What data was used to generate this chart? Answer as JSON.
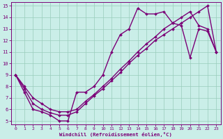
{
  "xlabel": "Windchill (Refroidissement éolien,°C)",
  "line1_x": [
    0,
    1,
    2,
    3,
    4,
    5,
    6,
    7,
    8,
    9,
    10,
    11,
    12,
    13,
    14,
    15,
    16,
    17,
    18,
    19,
    20,
    21,
    22,
    23
  ],
  "line1_y": [
    9.0,
    7.5,
    6.0,
    5.8,
    5.5,
    5.0,
    5.0,
    7.5,
    7.5,
    8.0,
    9.0,
    11.0,
    12.5,
    13.0,
    14.8,
    14.3,
    14.3,
    14.5,
    13.5,
    13.3,
    10.5,
    13.0,
    12.8,
    11.0
  ],
  "line2_x": [
    0,
    1,
    2,
    3,
    4,
    5,
    6,
    7,
    8,
    9,
    10,
    11,
    12,
    13,
    14,
    15,
    16,
    17,
    18,
    19,
    20,
    21,
    22,
    23
  ],
  "line2_y": [
    9.0,
    8.0,
    7.0,
    6.5,
    6.0,
    5.8,
    5.8,
    6.0,
    6.7,
    7.3,
    8.0,
    8.7,
    9.5,
    10.2,
    11.0,
    11.7,
    12.3,
    13.0,
    13.5,
    14.0,
    14.5,
    13.3,
    13.0,
    11.0
  ],
  "line3_x": [
    0,
    1,
    2,
    3,
    4,
    5,
    6,
    7,
    8,
    9,
    10,
    11,
    12,
    13,
    14,
    15,
    16,
    17,
    18,
    19,
    20,
    21,
    22,
    23
  ],
  "line3_y": [
    9.0,
    7.8,
    6.5,
    6.0,
    5.7,
    5.5,
    5.5,
    5.8,
    6.5,
    7.2,
    7.8,
    8.5,
    9.2,
    10.0,
    10.7,
    11.3,
    12.0,
    12.5,
    13.0,
    13.5,
    14.0,
    14.5,
    15.0,
    11.0
  ],
  "color": "#7b0077",
  "bg_color": "#caeee8",
  "grid_color": "#99ccbb",
  "xlim": [
    -0.5,
    23.5
  ],
  "ylim": [
    4.7,
    15.3
  ],
  "xticks": [
    0,
    1,
    2,
    3,
    4,
    5,
    6,
    7,
    8,
    9,
    10,
    11,
    12,
    13,
    14,
    15,
    16,
    17,
    18,
    19,
    20,
    21,
    22,
    23
  ],
  "yticks": [
    5,
    6,
    7,
    8,
    9,
    10,
    11,
    12,
    13,
    14,
    15
  ],
  "lw": 1.0,
  "ms": 2.0
}
